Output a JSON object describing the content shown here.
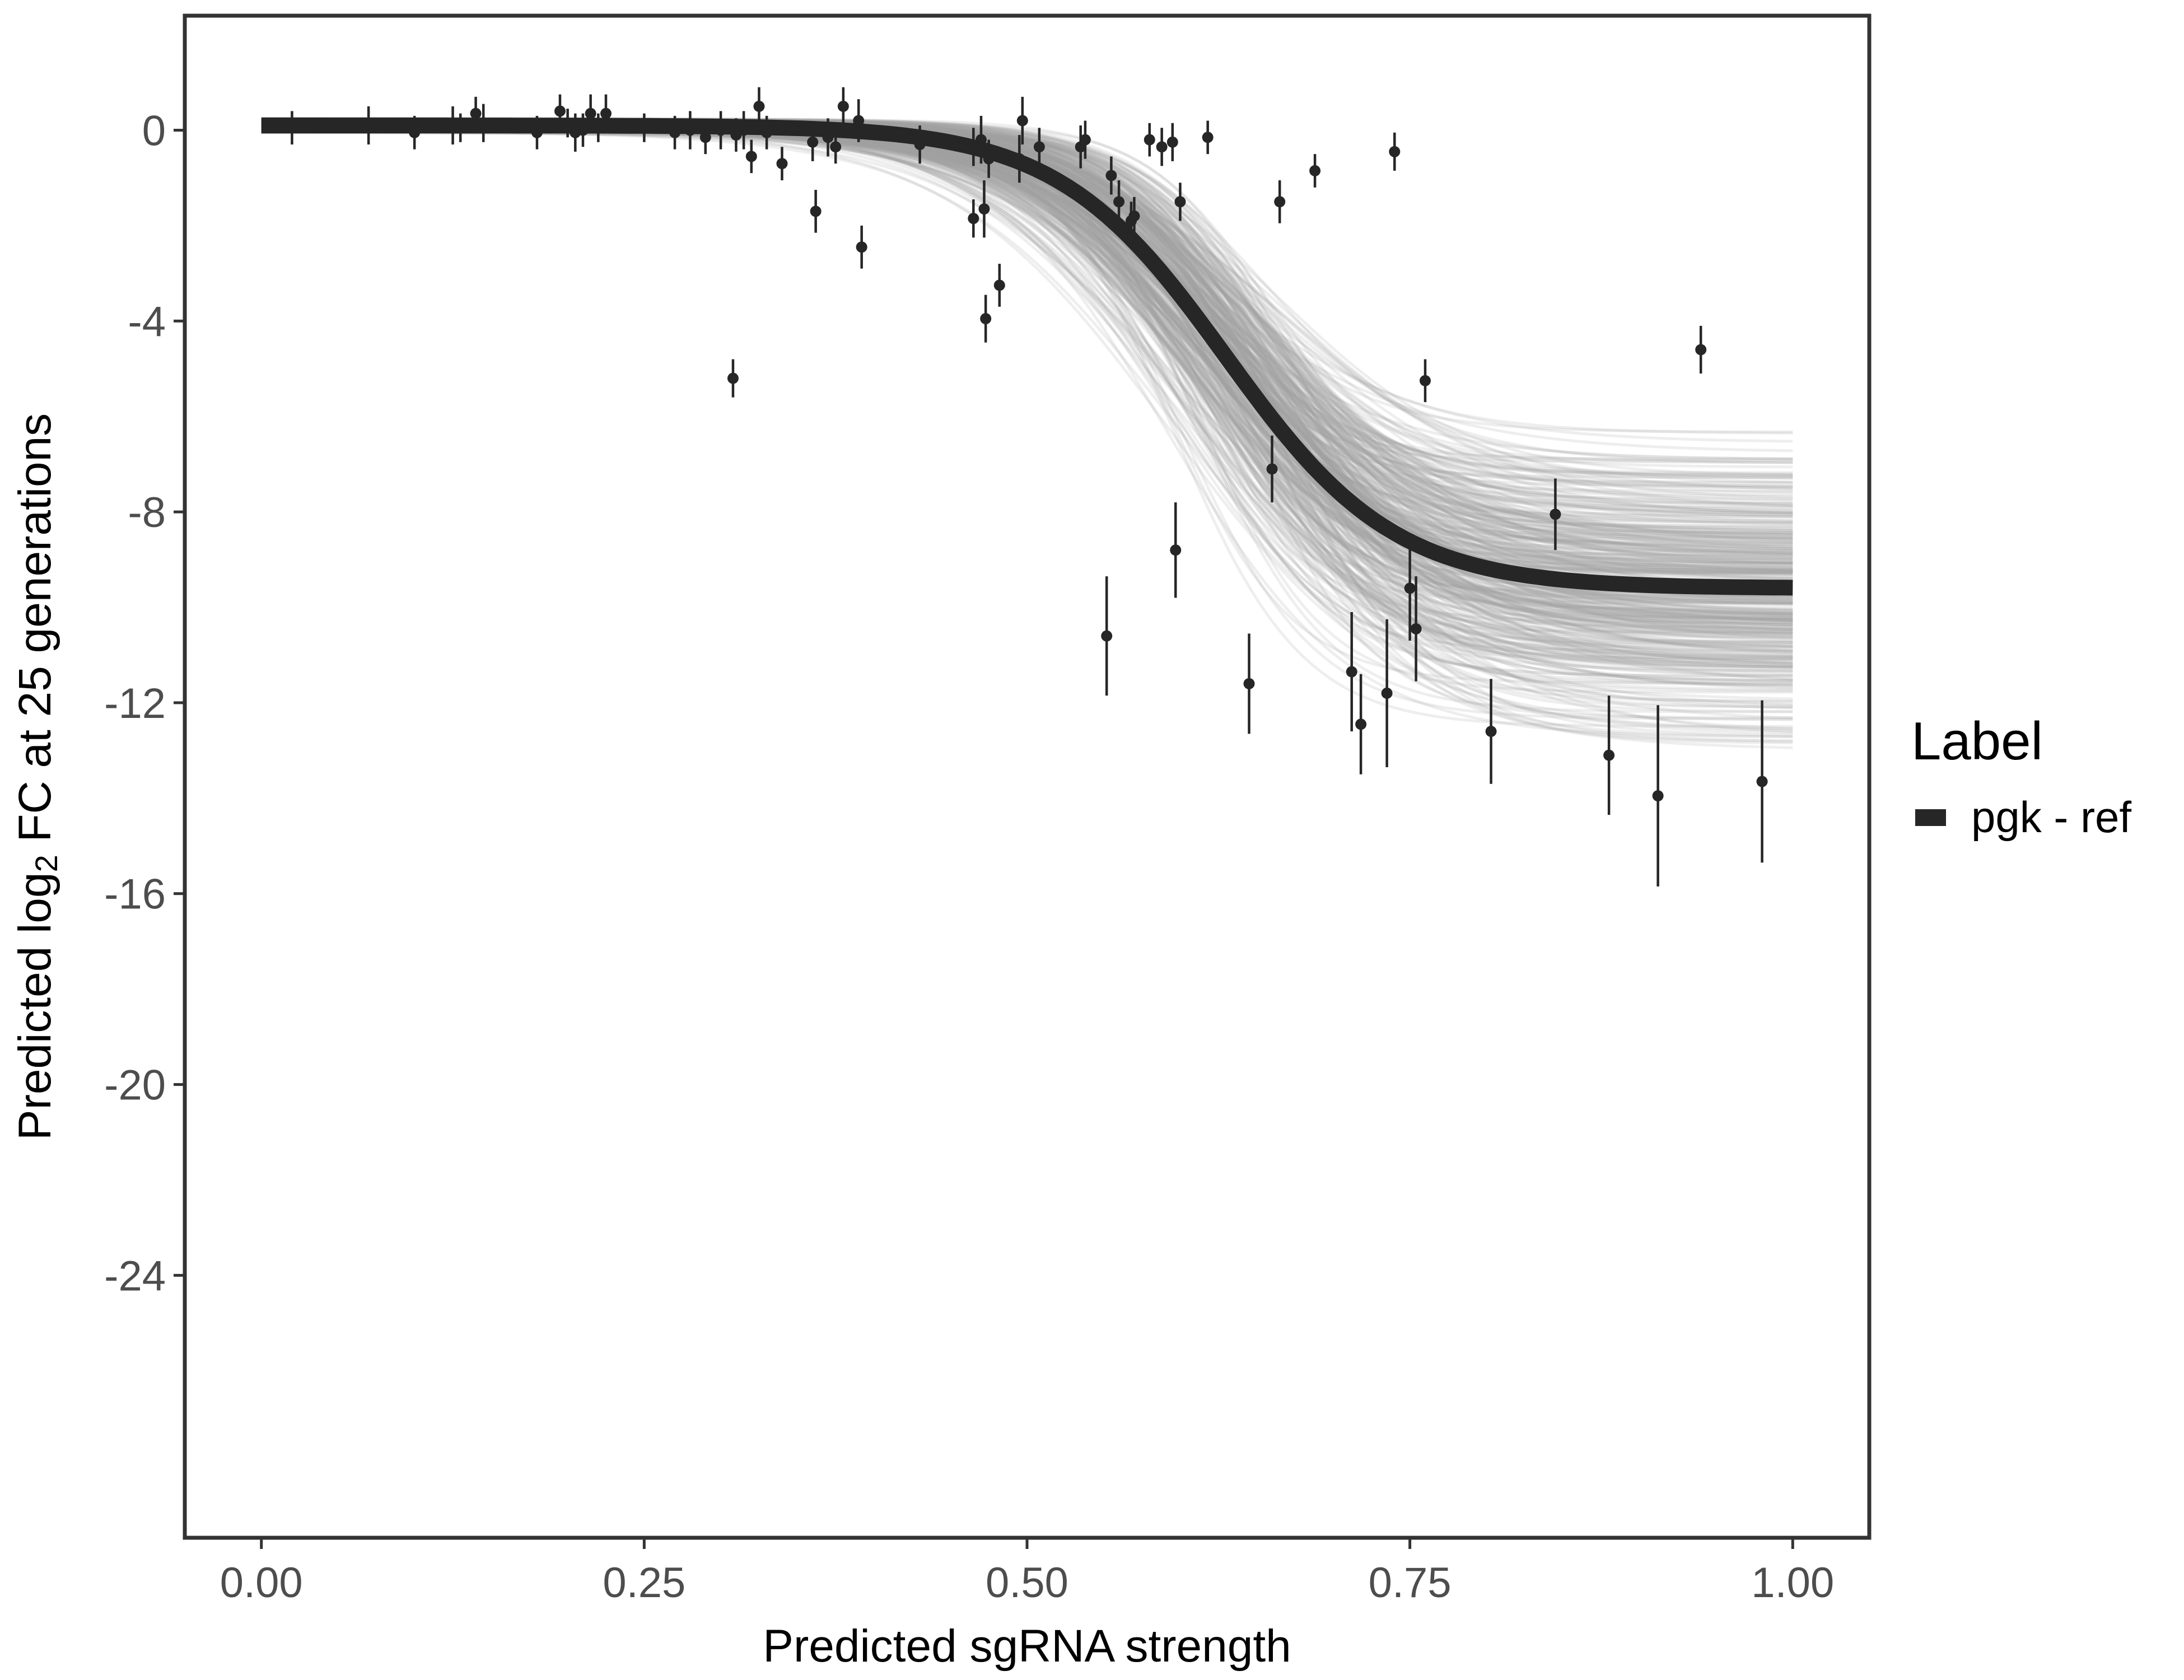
{
  "chart_data": {
    "type": "scatter",
    "title": "",
    "xlabel": "Predicted sgRNA strength",
    "ylabel": {
      "prefix": "Predicted  log",
      "subscript": "2",
      "suffix": " FC at 25 generations"
    },
    "xlim": [
      -0.05,
      1.05
    ],
    "ylim": [
      -29.5,
      2.4
    ],
    "x_ticks": [
      0,
      0.25,
      0.5,
      0.75,
      1
    ],
    "x_tick_labels": [
      "0.00",
      "0.25",
      "0.50",
      "0.75",
      "1.00"
    ],
    "y_ticks": [
      0,
      -4,
      -8,
      -12,
      -16,
      -20,
      -24
    ],
    "y_tick_labels": [
      "0",
      "-4",
      "-8",
      "-12",
      "-16",
      "-20",
      "-24"
    ],
    "grid": false,
    "legend": {
      "title": "Label",
      "position": "right",
      "entries": [
        {
          "label": "pgk - ref",
          "color": "#262626"
        }
      ]
    },
    "fit_curve": {
      "name": "pgk - ref",
      "form": "logistic",
      "upper": 0.1,
      "lower": -9.6,
      "midpoint": 0.63,
      "scale": 0.055,
      "color": "#262626"
    },
    "posterior_draws": {
      "count": 400,
      "midpoint_range": [
        0.59,
        0.67
      ],
      "scale_range": [
        0.04,
        0.075
      ],
      "lower_range": [
        -13.2,
        -6.2
      ],
      "color": "#9e9e9e"
    },
    "points": [
      {
        "x": 0.02,
        "y": 0.05,
        "err": 0.35
      },
      {
        "x": 0.07,
        "y": 0.1,
        "err": 0.4
      },
      {
        "x": 0.1,
        "y": -0.05,
        "err": 0.35
      },
      {
        "x": 0.125,
        "y": 0.1,
        "err": 0.4
      },
      {
        "x": 0.13,
        "y": 0.05,
        "err": 0.3
      },
      {
        "x": 0.14,
        "y": 0.35,
        "err": 0.35
      },
      {
        "x": 0.145,
        "y": 0.15,
        "err": 0.4
      },
      {
        "x": 0.18,
        "y": -0.05,
        "err": 0.35
      },
      {
        "x": 0.195,
        "y": 0.4,
        "err": 0.35
      },
      {
        "x": 0.2,
        "y": 0.15,
        "err": 0.3
      },
      {
        "x": 0.205,
        "y": -0.05,
        "err": 0.4
      },
      {
        "x": 0.21,
        "y": 0.0,
        "err": 0.35
      },
      {
        "x": 0.215,
        "y": 0.35,
        "err": 0.4
      },
      {
        "x": 0.22,
        "y": 0.05,
        "err": 0.3
      },
      {
        "x": 0.225,
        "y": 0.35,
        "err": 0.4
      },
      {
        "x": 0.25,
        "y": 0.05,
        "err": 0.3
      },
      {
        "x": 0.27,
        "y": -0.05,
        "err": 0.35
      },
      {
        "x": 0.28,
        "y": 0.0,
        "err": 0.4
      },
      {
        "x": 0.29,
        "y": -0.15,
        "err": 0.35
      },
      {
        "x": 0.3,
        "y": 0.0,
        "err": 0.4
      },
      {
        "x": 0.31,
        "y": -0.1,
        "err": 0.35
      },
      {
        "x": 0.315,
        "y": 0.0,
        "err": 0.4
      },
      {
        "x": 0.32,
        "y": -0.55,
        "err": 0.35
      },
      {
        "x": 0.325,
        "y": 0.5,
        "err": 0.4
      },
      {
        "x": 0.33,
        "y": -0.05,
        "err": 0.35
      },
      {
        "x": 0.308,
        "y": -5.2,
        "err": 0.4
      },
      {
        "x": 0.34,
        "y": -0.7,
        "err": 0.35
      },
      {
        "x": 0.36,
        "y": -0.25,
        "err": 0.4
      },
      {
        "x": 0.362,
        "y": -1.7,
        "err": 0.45
      },
      {
        "x": 0.37,
        "y": -0.15,
        "err": 0.4
      },
      {
        "x": 0.375,
        "y": -0.35,
        "err": 0.35
      },
      {
        "x": 0.38,
        "y": 0.5,
        "err": 0.4
      },
      {
        "x": 0.39,
        "y": 0.2,
        "err": 0.45
      },
      {
        "x": 0.392,
        "y": -2.45,
        "err": 0.45
      },
      {
        "x": 0.43,
        "y": -0.3,
        "err": 0.4
      },
      {
        "x": 0.465,
        "y": -0.35,
        "err": 0.4
      },
      {
        "x": 0.465,
        "y": -1.85,
        "err": 0.4
      },
      {
        "x": 0.47,
        "y": -0.2,
        "err": 0.5
      },
      {
        "x": 0.472,
        "y": -1.65,
        "err": 0.6
      },
      {
        "x": 0.473,
        "y": -3.95,
        "err": 0.5
      },
      {
        "x": 0.475,
        "y": -0.6,
        "err": 0.4
      },
      {
        "x": 0.482,
        "y": -3.25,
        "err": 0.45
      },
      {
        "x": 0.495,
        "y": -0.6,
        "err": 0.5
      },
      {
        "x": 0.497,
        "y": 0.2,
        "err": 0.5
      },
      {
        "x": 0.508,
        "y": -0.35,
        "err": 0.4
      },
      {
        "x": 0.535,
        "y": -0.35,
        "err": 0.45
      },
      {
        "x": 0.538,
        "y": -0.2,
        "err": 0.4
      },
      {
        "x": 0.552,
        "y": -10.6,
        "err": 1.25
      },
      {
        "x": 0.555,
        "y": -0.95,
        "err": 0.4
      },
      {
        "x": 0.56,
        "y": -1.5,
        "err": 0.45
      },
      {
        "x": 0.568,
        "y": -1.9,
        "err": 0.4
      },
      {
        "x": 0.57,
        "y": -1.8,
        "err": 0.4
      },
      {
        "x": 0.58,
        "y": -0.2,
        "err": 0.35
      },
      {
        "x": 0.588,
        "y": -0.35,
        "err": 0.4
      },
      {
        "x": 0.595,
        "y": -0.25,
        "err": 0.4
      },
      {
        "x": 0.597,
        "y": -8.8,
        "err": 1.0
      },
      {
        "x": 0.6,
        "y": -1.5,
        "err": 0.4
      },
      {
        "x": 0.618,
        "y": -0.15,
        "err": 0.35
      },
      {
        "x": 0.645,
        "y": -11.6,
        "err": 1.05
      },
      {
        "x": 0.66,
        "y": -7.1,
        "err": 0.7
      },
      {
        "x": 0.665,
        "y": -1.5,
        "err": 0.45
      },
      {
        "x": 0.688,
        "y": -0.85,
        "err": 0.35
      },
      {
        "x": 0.712,
        "y": -11.35,
        "err": 1.25
      },
      {
        "x": 0.718,
        "y": -12.45,
        "err": 1.05
      },
      {
        "x": 0.735,
        "y": -11.8,
        "err": 1.55
      },
      {
        "x": 0.74,
        "y": -0.45,
        "err": 0.4
      },
      {
        "x": 0.75,
        "y": -9.6,
        "err": 1.1
      },
      {
        "x": 0.754,
        "y": -10.45,
        "err": 1.1
      },
      {
        "x": 0.76,
        "y": -5.25,
        "err": 0.45
      },
      {
        "x": 0.803,
        "y": -12.6,
        "err": 1.1
      },
      {
        "x": 0.845,
        "y": -8.05,
        "err": 0.75
      },
      {
        "x": 0.88,
        "y": -13.1,
        "err": 1.25
      },
      {
        "x": 0.912,
        "y": -13.95,
        "err": 1.9
      },
      {
        "x": 0.94,
        "y": -4.6,
        "err": 0.5
      },
      {
        "x": 0.98,
        "y": -13.65,
        "err": 1.7
      }
    ]
  }
}
